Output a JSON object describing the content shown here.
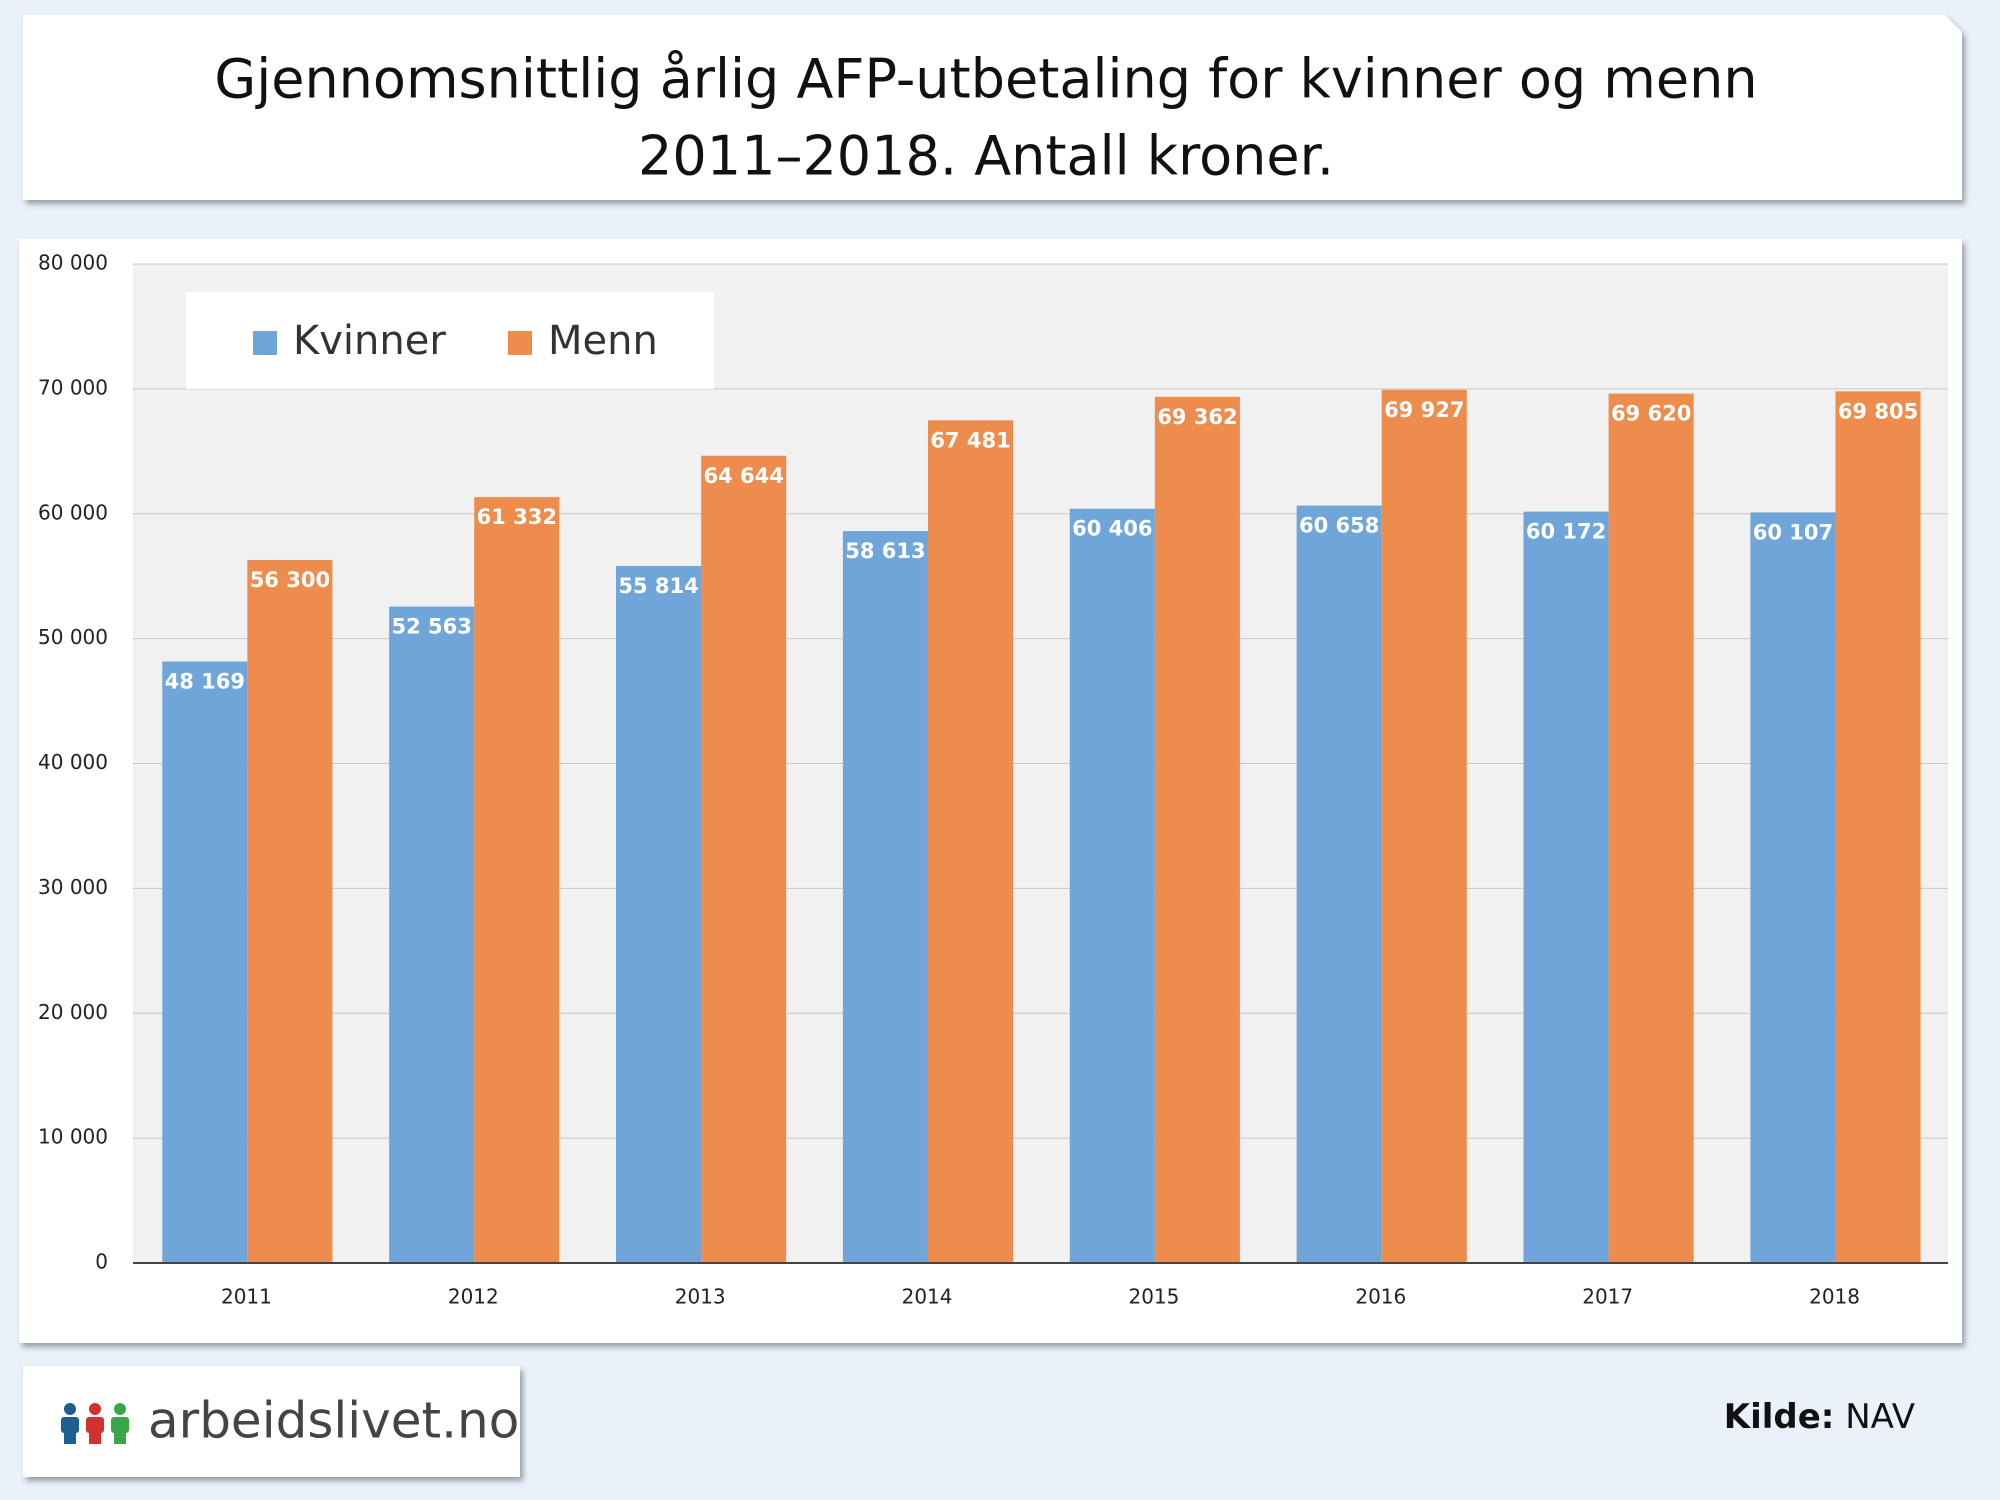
{
  "chart_data": {
    "type": "bar",
    "title": [
      "Gjennomsnittlig årlig AFP-utbetaling for kvinner og menn",
      "2011–2018. Antall kroner."
    ],
    "categories": [
      "2011",
      "2012",
      "2013",
      "2014",
      "2015",
      "2016",
      "2017",
      "2018"
    ],
    "series": [
      {
        "name": "Kvinner",
        "color": "#6fa5d8",
        "values": [
          48169,
          52563,
          55814,
          58613,
          60406,
          60658,
          60172,
          60107
        ],
        "value_labels": [
          "48 169",
          "52 563",
          "55 814",
          "58 613",
          "60 406",
          "60 658",
          "60 172",
          "60 107"
        ]
      },
      {
        "name": "Menn",
        "color": "#ee8c4d",
        "values": [
          56300,
          61332,
          64644,
          67481,
          69362,
          69927,
          69620,
          69805
        ],
        "value_labels": [
          "56 300",
          "61 332",
          "64 644",
          "67 481",
          "69 362",
          "69 927",
          "69 620",
          "69 805"
        ]
      }
    ],
    "ylim": [
      0,
      80000
    ],
    "yticks": [
      0,
      {
        "value": 10000,
        "label": "10 000"
      },
      {
        "value": 20000,
        "label": "20 000"
      },
      {
        "value": 30000,
        "label": "30 000"
      },
      {
        "value": 40000,
        "label": "40 000"
      },
      {
        "value": 50000,
        "label": "50 000"
      },
      {
        "value": 60000,
        "label": "60 000"
      },
      {
        "value": 70000,
        "label": "70 000"
      },
      {
        "value": 80000,
        "label": "80 000"
      }
    ],
    "grid": true,
    "legend": "top-left"
  },
  "footer": {
    "logo": "arbeidslivet.no",
    "source_label": "Kilde:",
    "source": "NAV"
  }
}
